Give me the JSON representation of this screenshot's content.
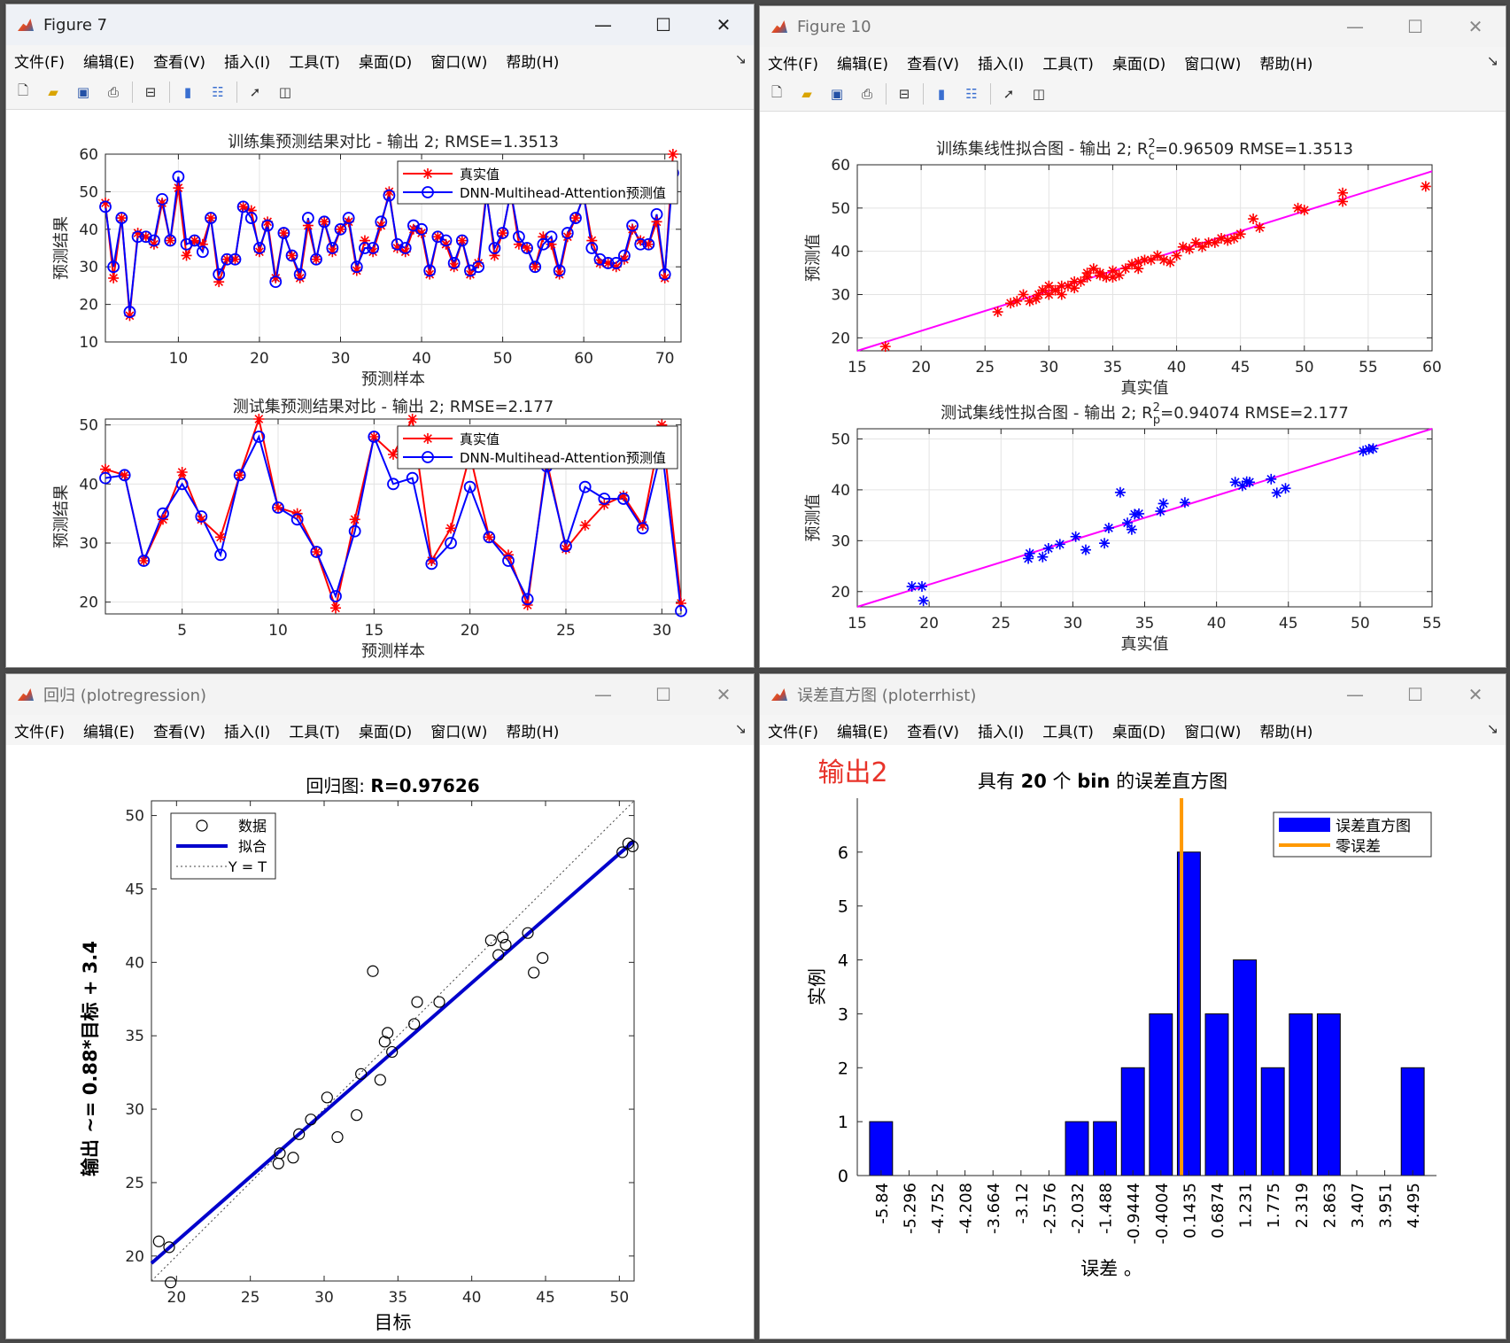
{
  "menus": [
    "文件(F)",
    "编辑(E)",
    "查看(V)",
    "插入(I)",
    "工具(T)",
    "桌面(D)",
    "窗口(W)",
    "帮助(H)"
  ],
  "window_buttons": {
    "minimize": "—",
    "maximize": "☐",
    "close": "✕"
  },
  "toolbar_icons": [
    "new-figure-icon",
    "open-file-icon",
    "save-icon",
    "print-icon",
    "print-preview-icon",
    "colorbar-icon",
    "legend-icon",
    "pointer-icon",
    "property-editor-icon"
  ],
  "accent_colors": {
    "red": "#ff0000",
    "blue": "#0000ff",
    "magenta": "#ff00ff",
    "orange": "#ff9900",
    "title_red": "#e8332a"
  },
  "windows": {
    "fig7": {
      "title": "Figure 7"
    },
    "fig10": {
      "title": "Figure 10"
    },
    "regression": {
      "title": "回归 (plotregression)"
    },
    "errhist": {
      "title": "误差直方图 (ploterrhist)"
    }
  },
  "chart_data": [
    {
      "id": "train_compare",
      "type": "line",
      "title": "训练集预测结果对比 - 输出 2; RMSE=1.3513",
      "xlabel": "预测样本",
      "ylabel": "预测结果",
      "xlim": [
        1,
        72
      ],
      "ylim": [
        10,
        60
      ],
      "xticks": [
        10,
        20,
        30,
        40,
        50,
        60,
        70
      ],
      "yticks": [
        10,
        20,
        30,
        40,
        50,
        60
      ],
      "grid": true,
      "legend_position": "top-right",
      "series": [
        {
          "name": "真实值",
          "color": "#ff0000",
          "marker": "star",
          "values": [
            47,
            27,
            43,
            17,
            39,
            38,
            36,
            47,
            37,
            51,
            33,
            37,
            36,
            43,
            26,
            32,
            32,
            46,
            45,
            34,
            42,
            27,
            39,
            33,
            27,
            41,
            32,
            42,
            34,
            40,
            42,
            29,
            37,
            34,
            41,
            50,
            35,
            34,
            40,
            39,
            28,
            38,
            36,
            30,
            37,
            28,
            31,
            50,
            33,
            39,
            50,
            36,
            35,
            30,
            38,
            36,
            28,
            38,
            43,
            49,
            37,
            31,
            31,
            30,
            32,
            40,
            37,
            36,
            42,
            27,
            60
          ]
        },
        {
          "name": "DNN-Multihead-Attention预测值",
          "color": "#0000ff",
          "marker": "circle",
          "values": [
            46,
            30,
            43,
            18,
            38,
            38,
            37,
            48,
            37,
            54,
            36,
            37,
            34,
            43,
            28,
            32,
            32,
            46,
            43,
            35,
            41,
            26,
            39,
            33,
            28,
            43,
            32,
            42,
            35,
            40,
            43,
            30,
            35,
            35,
            42,
            49,
            36,
            35,
            41,
            40,
            29,
            38,
            37,
            31,
            37,
            29,
            30,
            49,
            35,
            39,
            50,
            38,
            35,
            30,
            36,
            38,
            29,
            39,
            43,
            49,
            35,
            32,
            31,
            31,
            33,
            41,
            36,
            36,
            44,
            28,
            55
          ]
        }
      ]
    },
    {
      "id": "test_compare",
      "type": "line",
      "title": "测试集预测结果对比 - 输出 2; RMSE=2.177",
      "xlabel": "预测样本",
      "ylabel": "预测结果",
      "xlim": [
        1,
        31
      ],
      "ylim": [
        18,
        51
      ],
      "xticks": [
        5,
        10,
        15,
        20,
        25,
        30
      ],
      "yticks": [
        20,
        30,
        40,
        50
      ],
      "grid": true,
      "legend_position": "top-right",
      "series": [
        {
          "name": "真实值",
          "color": "#ff0000",
          "marker": "star",
          "values": [
            42.5,
            41.5,
            27,
            34,
            42,
            34,
            31,
            41.5,
            51,
            36,
            35,
            28.5,
            19,
            34,
            48,
            45,
            51,
            27,
            32.5,
            45,
            31,
            28,
            19.5,
            44,
            29,
            33,
            36.5,
            38,
            33,
            50,
            19.8
          ]
        },
        {
          "name": "DNN-Multihead-Attention预测值",
          "color": "#0000ff",
          "marker": "circle",
          "values": [
            41,
            41.5,
            27,
            35,
            40,
            34.5,
            28,
            41.5,
            48,
            36,
            34,
            28.5,
            21,
            32,
            48,
            40,
            41,
            26.5,
            30,
            39.5,
            31,
            27,
            20.5,
            43,
            29.5,
            39.5,
            37.5,
            37.5,
            32.5,
            46,
            18.5
          ]
        }
      ]
    },
    {
      "id": "train_fit",
      "type": "scatter",
      "title": "训练集线性拟合图 - 输出 2; R",
      "title_sup": "2",
      "title_sub": "c",
      "title_rest": "=0.96509  RMSE=1.3513",
      "xlabel": "真实值",
      "ylabel": "预测值",
      "xlim": [
        15,
        60
      ],
      "ylim": [
        17,
        60
      ],
      "xticks": [
        15,
        20,
        25,
        30,
        35,
        40,
        45,
        50,
        55,
        60
      ],
      "yticks": [
        20,
        30,
        40,
        50,
        60
      ],
      "grid": true,
      "fit_line": {
        "color": "#ff00ff",
        "x": [
          15,
          60
        ],
        "y": [
          17,
          58.5
        ]
      },
      "series": [
        {
          "color": "#ff0000",
          "marker": "star",
          "x": [
            17.2,
            26,
            27,
            27.5,
            28,
            28.5,
            29,
            29.2,
            29.5,
            30,
            30,
            30.5,
            31,
            31,
            31.5,
            32,
            32,
            32.5,
            33,
            33,
            33.5,
            34,
            34,
            34.5,
            35,
            35,
            35.5,
            36,
            36.5,
            37,
            37,
            37.5,
            38,
            38.5,
            39,
            39.5,
            40,
            40.5,
            41,
            41.5,
            42,
            42.5,
            43,
            43.5,
            44,
            44.5,
            45,
            46,
            46.5,
            49.5,
            50,
            53,
            53,
            59.5
          ],
          "y": [
            18,
            26,
            28,
            28.5,
            30,
            28.5,
            29,
            30,
            31,
            30,
            32,
            31,
            30,
            32,
            32,
            33,
            31.5,
            33,
            34,
            35,
            36,
            34.5,
            35,
            34,
            34,
            35.5,
            34.5,
            36,
            37,
            37.5,
            36,
            38,
            38,
            39,
            38,
            37.5,
            39,
            41,
            40.5,
            42,
            41,
            42,
            42,
            43,
            42.5,
            43,
            44,
            47.5,
            45.5,
            50,
            49.5,
            53.5,
            51.5,
            55
          ]
        }
      ]
    },
    {
      "id": "test_fit",
      "type": "scatter",
      "title": "测试集线性拟合图 - 输出 2; R",
      "title_sup": "2",
      "title_sub": "p",
      "title_rest": "=0.94074  RMSE=2.177",
      "xlabel": "真实值",
      "ylabel": "预测值",
      "xlim": [
        15,
        55
      ],
      "ylim": [
        17,
        52
      ],
      "xticks": [
        15,
        20,
        25,
        30,
        35,
        40,
        45,
        50,
        55
      ],
      "yticks": [
        20,
        30,
        40,
        50
      ],
      "grid": true,
      "fit_line": {
        "color": "#ff00ff",
        "x": [
          15,
          55
        ],
        "y": [
          17,
          52
        ]
      },
      "series": [
        {
          "color": "#0000ff",
          "marker": "star",
          "x": [
            18.8,
            19.5,
            19.6,
            26.9,
            27,
            27.9,
            28.3,
            29.1,
            30.2,
            30.9,
            32.2,
            32.5,
            33.3,
            33.8,
            34.1,
            34.3,
            34.6,
            36.1,
            36.3,
            37.8,
            41.3,
            41.8,
            42.1,
            42.3,
            43.8,
            44.2,
            44.8,
            50.2,
            50.6,
            50.9
          ],
          "y": [
            21,
            21,
            18.2,
            26.5,
            27.5,
            26.8,
            28.5,
            29.3,
            30.8,
            28.2,
            29.5,
            32.5,
            39.5,
            33.5,
            32.2,
            35.2,
            35.3,
            35.8,
            37.3,
            37.5,
            41.5,
            40.8,
            41.6,
            41.5,
            42.1,
            39.4,
            40.3,
            47.6,
            48,
            48.1
          ]
        }
      ]
    },
    {
      "id": "regression",
      "type": "scatter",
      "title": "回归图: ",
      "title_bold": "R=0.97626",
      "xlabel": "目标",
      "ylabel": "输出 ~= 0.88*目标 + 3.4",
      "xlim": [
        18.3,
        51
      ],
      "ylim": [
        18.3,
        51
      ],
      "xticks": [
        20,
        25,
        30,
        35,
        40,
        45,
        50
      ],
      "yticks": [
        20,
        25,
        30,
        35,
        40,
        45,
        50
      ],
      "grid": false,
      "legend_position": "top-left",
      "legend": [
        "数据",
        "拟合",
        "Y = T"
      ],
      "fit": {
        "slope": 0.88,
        "intercept": 3.4,
        "color": "#0000cc"
      },
      "series": [
        {
          "name": "数据",
          "marker": "circle",
          "color": "#000000",
          "x": [
            18.8,
            19.5,
            19.6,
            26.9,
            27,
            27.9,
            28.3,
            29.1,
            30.2,
            30.9,
            32.2,
            32.5,
            33.3,
            33.8,
            34.1,
            34.3,
            34.6,
            36.1,
            36.3,
            37.8,
            41.3,
            41.8,
            42.1,
            42.3,
            43.8,
            44.2,
            44.8,
            50.2,
            50.6,
            50.9
          ],
          "y": [
            21,
            20.6,
            18.2,
            26.3,
            27,
            26.7,
            28.3,
            29.3,
            30.8,
            28.1,
            29.6,
            32.4,
            39.4,
            32,
            34.6,
            35.2,
            33.9,
            35.8,
            37.3,
            37.3,
            41.5,
            40.5,
            41.7,
            41.2,
            42,
            39.3,
            40.3,
            47.5,
            48.1,
            47.9
          ]
        }
      ]
    },
    {
      "id": "error_hist",
      "type": "bar",
      "title_pre": "具有 ",
      "title_bold": "20",
      "title_mid": " 个 ",
      "title_bold2": "bin",
      "title_post": " 的误差直方图",
      "annotation": "输出2",
      "xlabel": "误差 。",
      "ylabel": "实例",
      "ylim": [
        0,
        7
      ],
      "yticks": [
        0,
        1,
        2,
        3,
        4,
        5,
        6
      ],
      "categories": [
        "-5.84",
        "-5.296",
        "-4.752",
        "-4.208",
        "-3.664",
        "-3.12",
        "-2.576",
        "-2.032",
        "-1.488",
        "-0.9444",
        "-0.4004",
        "0.1435",
        "0.6874",
        "1.231",
        "1.775",
        "2.319",
        "2.863",
        "3.407",
        "3.951",
        "4.495"
      ],
      "values": [
        1,
        0,
        0,
        0,
        0,
        0,
        0,
        1,
        1,
        2,
        3,
        6,
        3,
        4,
        2,
        3,
        3,
        0,
        0,
        2
      ],
      "zero_line": 0,
      "bar_color": "#0000ff",
      "zero_color": "#ff9900",
      "legend_position": "top-right",
      "legend": [
        "误差直方图",
        "零误差"
      ]
    }
  ]
}
